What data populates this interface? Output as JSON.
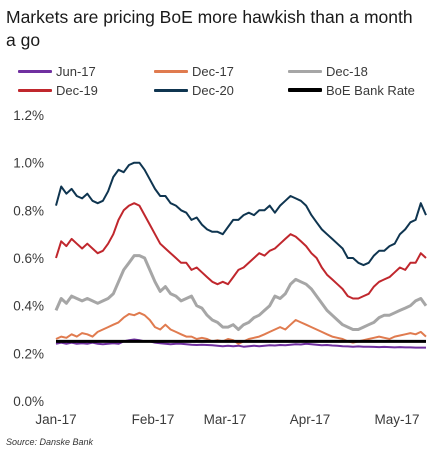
{
  "title": "Markets are pricing BoE more hawkish than a month a go",
  "source": "Source: Danske Bank",
  "chart_data": {
    "type": "line",
    "title": "Markets are pricing BoE more hawkish than a month a go",
    "xlabel": "",
    "ylabel": "",
    "x_ticks": [
      "Jan-17",
      "Feb-17",
      "Mar-17",
      "Apr-17",
      "May-17"
    ],
    "y_ticks": [
      "0.0%",
      "0.2%",
      "0.4%",
      "0.6%",
      "0.8%",
      "1.0%",
      "1.2%"
    ],
    "ylim": [
      0,
      1.2
    ],
    "y_unit": "%",
    "grid": false,
    "legend_position": "top",
    "series": [
      {
        "name": "Jun-17",
        "color": "#7030a0",
        "values": [
          0.24,
          0.245,
          0.24,
          0.245,
          0.24,
          0.242,
          0.24,
          0.245,
          0.24,
          0.238,
          0.24,
          0.242,
          0.24,
          0.25,
          0.255,
          0.258,
          0.255,
          0.25,
          0.25,
          0.245,
          0.242,
          0.24,
          0.238,
          0.24,
          0.24,
          0.238,
          0.236,
          0.235,
          0.236,
          0.235,
          0.234,
          0.232,
          0.23,
          0.232,
          0.23,
          0.232,
          0.228,
          0.23,
          0.232,
          0.23,
          0.232,
          0.234,
          0.233,
          0.235,
          0.234,
          0.236,
          0.238,
          0.237,
          0.24,
          0.238,
          0.236,
          0.234,
          0.235,
          0.233,
          0.232,
          0.23,
          0.229,
          0.228,
          0.229,
          0.228,
          0.228,
          0.227,
          0.226,
          0.227,
          0.226,
          0.225,
          0.226,
          0.225,
          0.225,
          0.224,
          0.224,
          0.224
        ]
      },
      {
        "name": "Dec-17",
        "color": "#e07b4f",
        "values": [
          0.26,
          0.27,
          0.265,
          0.28,
          0.27,
          0.285,
          0.28,
          0.27,
          0.29,
          0.3,
          0.31,
          0.32,
          0.33,
          0.35,
          0.365,
          0.36,
          0.37,
          0.36,
          0.34,
          0.31,
          0.3,
          0.32,
          0.3,
          0.29,
          0.28,
          0.27,
          0.27,
          0.26,
          0.265,
          0.26,
          0.25,
          0.255,
          0.25,
          0.26,
          0.255,
          0.24,
          0.25,
          0.26,
          0.265,
          0.27,
          0.28,
          0.29,
          0.3,
          0.31,
          0.3,
          0.32,
          0.34,
          0.33,
          0.32,
          0.31,
          0.3,
          0.29,
          0.28,
          0.27,
          0.265,
          0.26,
          0.25,
          0.245,
          0.25,
          0.255,
          0.26,
          0.265,
          0.27,
          0.265,
          0.26,
          0.27,
          0.275,
          0.28,
          0.285,
          0.28,
          0.29,
          0.27
        ]
      },
      {
        "name": "Dec-18",
        "color": "#a6a6a6",
        "values": [
          0.38,
          0.43,
          0.41,
          0.44,
          0.43,
          0.42,
          0.43,
          0.42,
          0.41,
          0.42,
          0.43,
          0.45,
          0.5,
          0.55,
          0.58,
          0.61,
          0.61,
          0.6,
          0.55,
          0.5,
          0.46,
          0.48,
          0.45,
          0.44,
          0.42,
          0.43,
          0.44,
          0.4,
          0.39,
          0.36,
          0.34,
          0.33,
          0.31,
          0.31,
          0.32,
          0.3,
          0.32,
          0.33,
          0.35,
          0.36,
          0.38,
          0.4,
          0.44,
          0.43,
          0.45,
          0.49,
          0.51,
          0.5,
          0.49,
          0.47,
          0.44,
          0.41,
          0.38,
          0.36,
          0.34,
          0.32,
          0.31,
          0.3,
          0.3,
          0.31,
          0.32,
          0.33,
          0.35,
          0.36,
          0.36,
          0.37,
          0.38,
          0.39,
          0.4,
          0.42,
          0.43,
          0.4
        ]
      },
      {
        "name": "Dec-19",
        "color": "#c0272d",
        "values": [
          0.6,
          0.67,
          0.65,
          0.68,
          0.66,
          0.64,
          0.66,
          0.64,
          0.62,
          0.63,
          0.66,
          0.7,
          0.76,
          0.8,
          0.82,
          0.83,
          0.82,
          0.78,
          0.74,
          0.7,
          0.66,
          0.64,
          0.62,
          0.6,
          0.58,
          0.58,
          0.55,
          0.56,
          0.54,
          0.52,
          0.5,
          0.49,
          0.5,
          0.49,
          0.52,
          0.55,
          0.56,
          0.58,
          0.6,
          0.62,
          0.61,
          0.63,
          0.64,
          0.66,
          0.68,
          0.7,
          0.69,
          0.67,
          0.65,
          0.62,
          0.6,
          0.56,
          0.53,
          0.51,
          0.49,
          0.47,
          0.44,
          0.43,
          0.43,
          0.44,
          0.45,
          0.48,
          0.5,
          0.51,
          0.52,
          0.54,
          0.56,
          0.55,
          0.58,
          0.58,
          0.62,
          0.6
        ]
      },
      {
        "name": "Dec-20",
        "color": "#0f3550",
        "values": [
          0.82,
          0.9,
          0.87,
          0.89,
          0.86,
          0.85,
          0.87,
          0.84,
          0.83,
          0.84,
          0.88,
          0.94,
          0.97,
          0.96,
          0.99,
          1.0,
          1.0,
          0.97,
          0.93,
          0.89,
          0.86,
          0.86,
          0.83,
          0.82,
          0.8,
          0.79,
          0.76,
          0.77,
          0.74,
          0.72,
          0.71,
          0.71,
          0.7,
          0.73,
          0.76,
          0.76,
          0.78,
          0.79,
          0.78,
          0.8,
          0.8,
          0.82,
          0.79,
          0.82,
          0.84,
          0.86,
          0.85,
          0.84,
          0.82,
          0.78,
          0.75,
          0.72,
          0.7,
          0.68,
          0.66,
          0.64,
          0.6,
          0.6,
          0.58,
          0.57,
          0.58,
          0.61,
          0.63,
          0.63,
          0.65,
          0.66,
          0.7,
          0.72,
          0.75,
          0.76,
          0.83,
          0.78
        ]
      },
      {
        "name": "BoE Bank Rate",
        "color": "#000000",
        "values": [
          0.25,
          0.25,
          0.25,
          0.25,
          0.25,
          0.25,
          0.25,
          0.25,
          0.25,
          0.25,
          0.25,
          0.25,
          0.25,
          0.25,
          0.25,
          0.25,
          0.25,
          0.25,
          0.25,
          0.25,
          0.25,
          0.25,
          0.25,
          0.25,
          0.25,
          0.25,
          0.25,
          0.25,
          0.25,
          0.25,
          0.25,
          0.25,
          0.25,
          0.25,
          0.25,
          0.25,
          0.25,
          0.25,
          0.25,
          0.25,
          0.25,
          0.25,
          0.25,
          0.25,
          0.25,
          0.25,
          0.25,
          0.25,
          0.25,
          0.25,
          0.25,
          0.25,
          0.25,
          0.25,
          0.25,
          0.25,
          0.25,
          0.25,
          0.25,
          0.25,
          0.25,
          0.25,
          0.25,
          0.25,
          0.25,
          0.25,
          0.25,
          0.25,
          0.25,
          0.25,
          0.25,
          0.25
        ]
      }
    ]
  }
}
